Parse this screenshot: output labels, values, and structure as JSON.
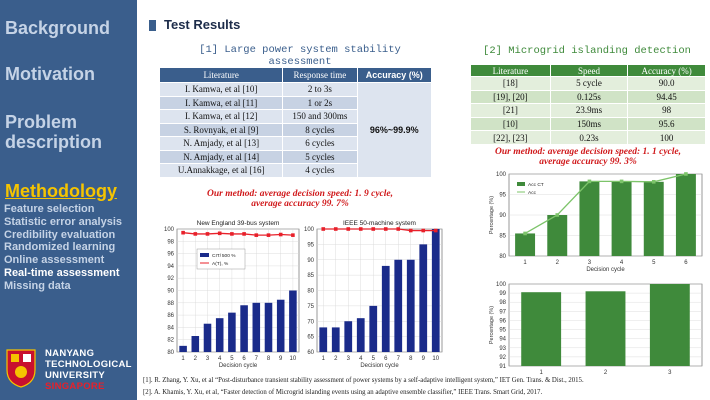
{
  "sidebar": {
    "items": [
      "Background",
      "Motivation",
      "Problem\ndescription",
      "Methodology"
    ],
    "subitems": [
      "Feature selection",
      "Statistic error analysis",
      "Credibility evaluation",
      "Randomized learning",
      "Online assessment",
      "Real-time assessment",
      "Missing data"
    ],
    "logo": {
      "line1": "NANYANG",
      "line2": "TECHNOLOGICAL",
      "line3": "UNIVERSITY",
      "line4": "SINGAPORE"
    }
  },
  "header": {
    "title": "Test Results"
  },
  "section1": {
    "title": "[1] Large power system stability assessment",
    "headers": [
      "Literature",
      "Response time",
      "Accuracy (%)"
    ],
    "rows": [
      [
        "I. Kamwa, et al [10]",
        "2 to 3s"
      ],
      [
        "I. Kamwa, et al [11]",
        "1 or 2s"
      ],
      [
        "I. Kamwa, et al [12]",
        "150 and 300ms"
      ],
      [
        "S. Rovnyak, et al [9]",
        "8 cycles"
      ],
      [
        "N. Amjady, et al [13]",
        "6 cycles"
      ],
      [
        "N. Amjady, et al [14]",
        "5 cycles"
      ],
      [
        "U.Annakkage, et al [16]",
        "4 cycles"
      ]
    ],
    "accuracy_merged": "96%~99.9%",
    "method_line1": "Our method: average decision speed: 1. 9 cycle,",
    "method_line2": "average accuracy 99. 7%"
  },
  "section2": {
    "title": "[2] Microgrid islanding detection",
    "headers": [
      "Literature",
      "Speed",
      "Accuracy (%)"
    ],
    "rows": [
      [
        "[18]",
        "5 cycle",
        "90.0"
      ],
      [
        "[19], [20]",
        "0.125s",
        "94.45"
      ],
      [
        "[21]",
        "23.9ms",
        "98"
      ],
      [
        "[10]",
        "150ms",
        "95.6"
      ],
      [
        "[22], [23]",
        "0.23s",
        "100"
      ]
    ],
    "method_line1": "Our method: average decision speed: 1. 1 cycle,",
    "method_line2": "average accuracy 99. 3%"
  },
  "chart_data": [
    {
      "type": "bar",
      "title": "New England 39-bus system",
      "xlabel": "Decision cycle",
      "categories": [
        "1",
        "2",
        "3",
        "4",
        "5",
        "6",
        "7",
        "8",
        "9",
        "10"
      ],
      "series": [
        {
          "name": "CIT/ 500 %",
          "kind": "bar",
          "values": [
            81.0,
            82.6,
            84.6,
            85.5,
            86.4,
            87.6,
            88.0,
            88.0,
            88.5,
            90.0
          ]
        },
        {
          "name": "A(T), %",
          "kind": "line",
          "values": [
            99.4,
            99.2,
            99.2,
            99.3,
            99.2,
            99.2,
            99.0,
            99.0,
            99.1,
            99.0
          ]
        }
      ],
      "ylim": [
        80,
        100
      ],
      "yticks": [
        "80",
        "82",
        "84",
        "86",
        "88",
        "90",
        "92",
        "94",
        "96",
        "98",
        "100"
      ],
      "colors": {
        "bar": "#1a2b8a",
        "line": "#e8202a"
      }
    },
    {
      "type": "bar",
      "title": "IEEE 50-machine system",
      "xlabel": "Decision cycle",
      "categories": [
        "1",
        "2",
        "3",
        "4",
        "5",
        "6",
        "7",
        "8",
        "9",
        "10"
      ],
      "series": [
        {
          "name": "bars",
          "kind": "bar",
          "values": [
            68,
            68,
            70,
            71,
            75,
            88,
            90,
            90,
            95,
            100
          ]
        },
        {
          "name": "line",
          "kind": "line",
          "values": [
            100,
            100,
            100,
            100,
            100,
            100,
            100,
            99.5,
            99.5,
            99.5
          ]
        }
      ],
      "ylim": [
        60,
        100
      ],
      "yticks": [
        "60",
        "65",
        "70",
        "75",
        "80",
        "85",
        "90",
        "95",
        "100"
      ],
      "colors": {
        "bar": "#1a2b8a",
        "line": "#e8202a"
      }
    },
    {
      "type": "bar",
      "title": "",
      "xlabel": "Decision cycle",
      "ylabel": "Percentage (%)",
      "categories": [
        "1",
        "2",
        "3",
        "4",
        "5",
        "6"
      ],
      "series": [
        {
          "name": "Acc CT",
          "kind": "bar",
          "values": [
            85.5,
            90,
            98.2,
            98.2,
            98.1,
            100
          ]
        },
        {
          "name": "Acc",
          "kind": "line",
          "values": [
            85.5,
            90,
            98.2,
            98.2,
            98.1,
            100
          ]
        }
      ],
      "ylim": [
        80,
        100
      ],
      "yticks": [
        "80",
        "85",
        "90",
        "95",
        "100"
      ],
      "colors": {
        "bar": "#3f8a3b",
        "line": "#7dc46a"
      }
    },
    {
      "type": "bar",
      "title": "",
      "xlabel": "Decision cycle",
      "ylabel": "Percentage (%)",
      "categories": [
        "1",
        "2",
        "3"
      ],
      "series": [
        {
          "name": "bars",
          "kind": "bar",
          "values": [
            99.1,
            99.2,
            100
          ]
        }
      ],
      "ylim": [
        91,
        100
      ],
      "yticks": [
        "91",
        "92",
        "93",
        "94",
        "95",
        "96",
        "97",
        "98",
        "99",
        "100"
      ],
      "colors": {
        "bar": "#3f8a3b"
      }
    }
  ],
  "references": [
    "[1]. R. Zhang, Y. Xu, et al “Post-disturbance transient stability assessment of power systems by a self-adaptive intelligent system,” IET Gen. Trans. & Dist., 2015.",
    "[2]. A. Khamis, Y. Xu, et al, “Faster detection of Microgrid islanding events using an adaptive ensemble classifier,” IEEE Trans. Smart Grid, 2017."
  ],
  "colors": {
    "sidebar": "#3a5e8c",
    "active": "#f5c400",
    "table_blue": "#3a5e8c",
    "table_green": "#3f8a3b",
    "accent_red": "#d0191b"
  }
}
